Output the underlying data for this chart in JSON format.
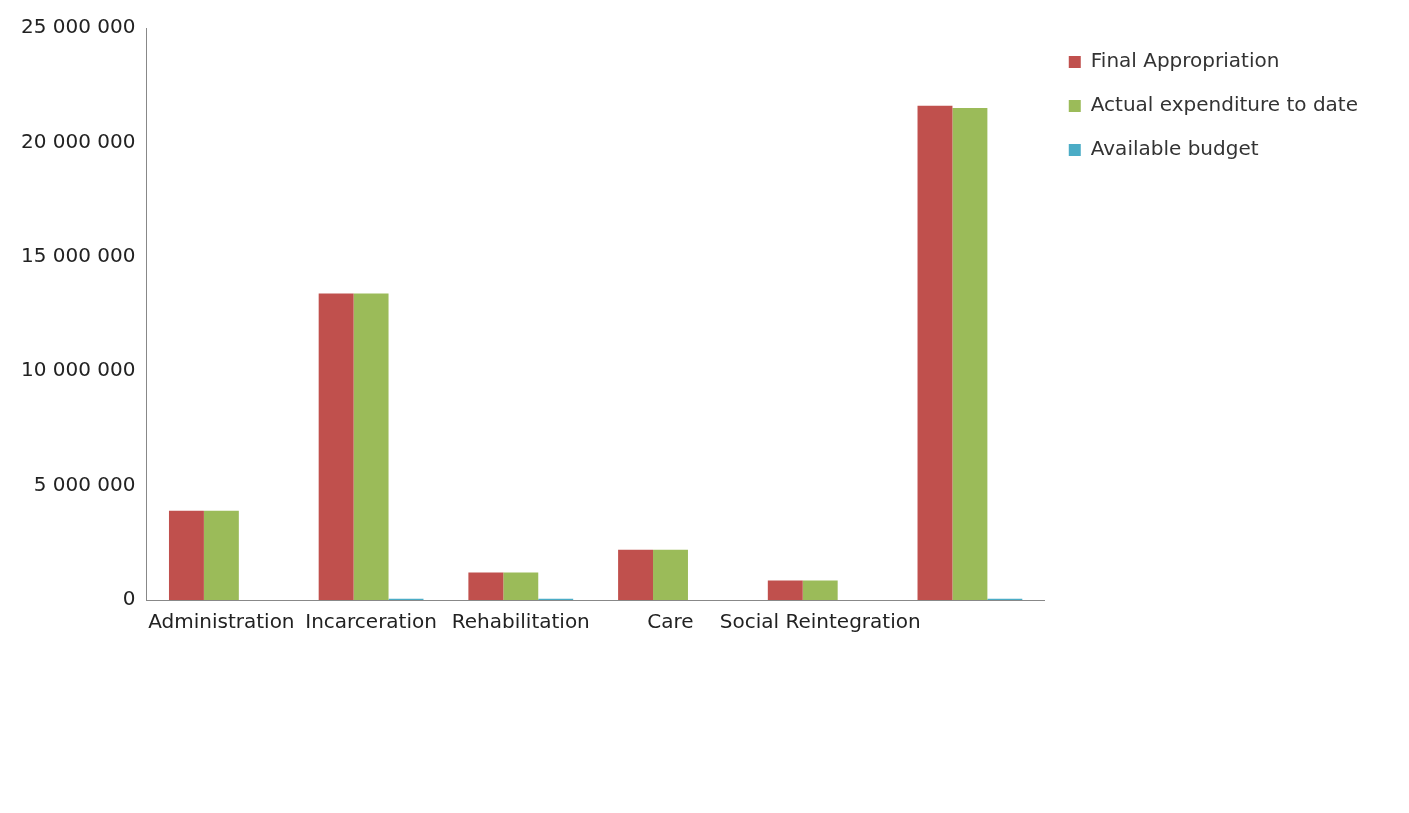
{
  "chart_data": {
    "type": "bar",
    "categories": [
      "Administration",
      "Incarceration",
      "Rehabilitation",
      "Care",
      "Social Reintegration",
      null
    ],
    "series": [
      {
        "name": "Final Appropriation",
        "color": "#c0504d",
        "values": [
          3900000,
          13400000,
          1200000,
          2200000,
          850000,
          21600000
        ]
      },
      {
        "name": "Actual expenditure to date",
        "color": "#9bbb59",
        "values": [
          3900000,
          13400000,
          1200000,
          2200000,
          850000,
          21500000
        ]
      },
      {
        "name": "Available budget",
        "color": "#4bacc6",
        "values": [
          0,
          50000,
          50000,
          0,
          0,
          50000
        ]
      }
    ],
    "ylim": [
      0,
      25000000
    ],
    "yticks": [
      {
        "value": 0,
        "label": "0"
      },
      {
        "value": 5000000,
        "label": "5 000 000"
      },
      {
        "value": 10000000,
        "label": "10 000 000"
      },
      {
        "value": 15000000,
        "label": "15 000 000"
      },
      {
        "value": 20000000,
        "label": "20 000 000"
      },
      {
        "value": 25000000,
        "label": "25 000 000"
      }
    ],
    "grid": false,
    "legend": "top right"
  }
}
